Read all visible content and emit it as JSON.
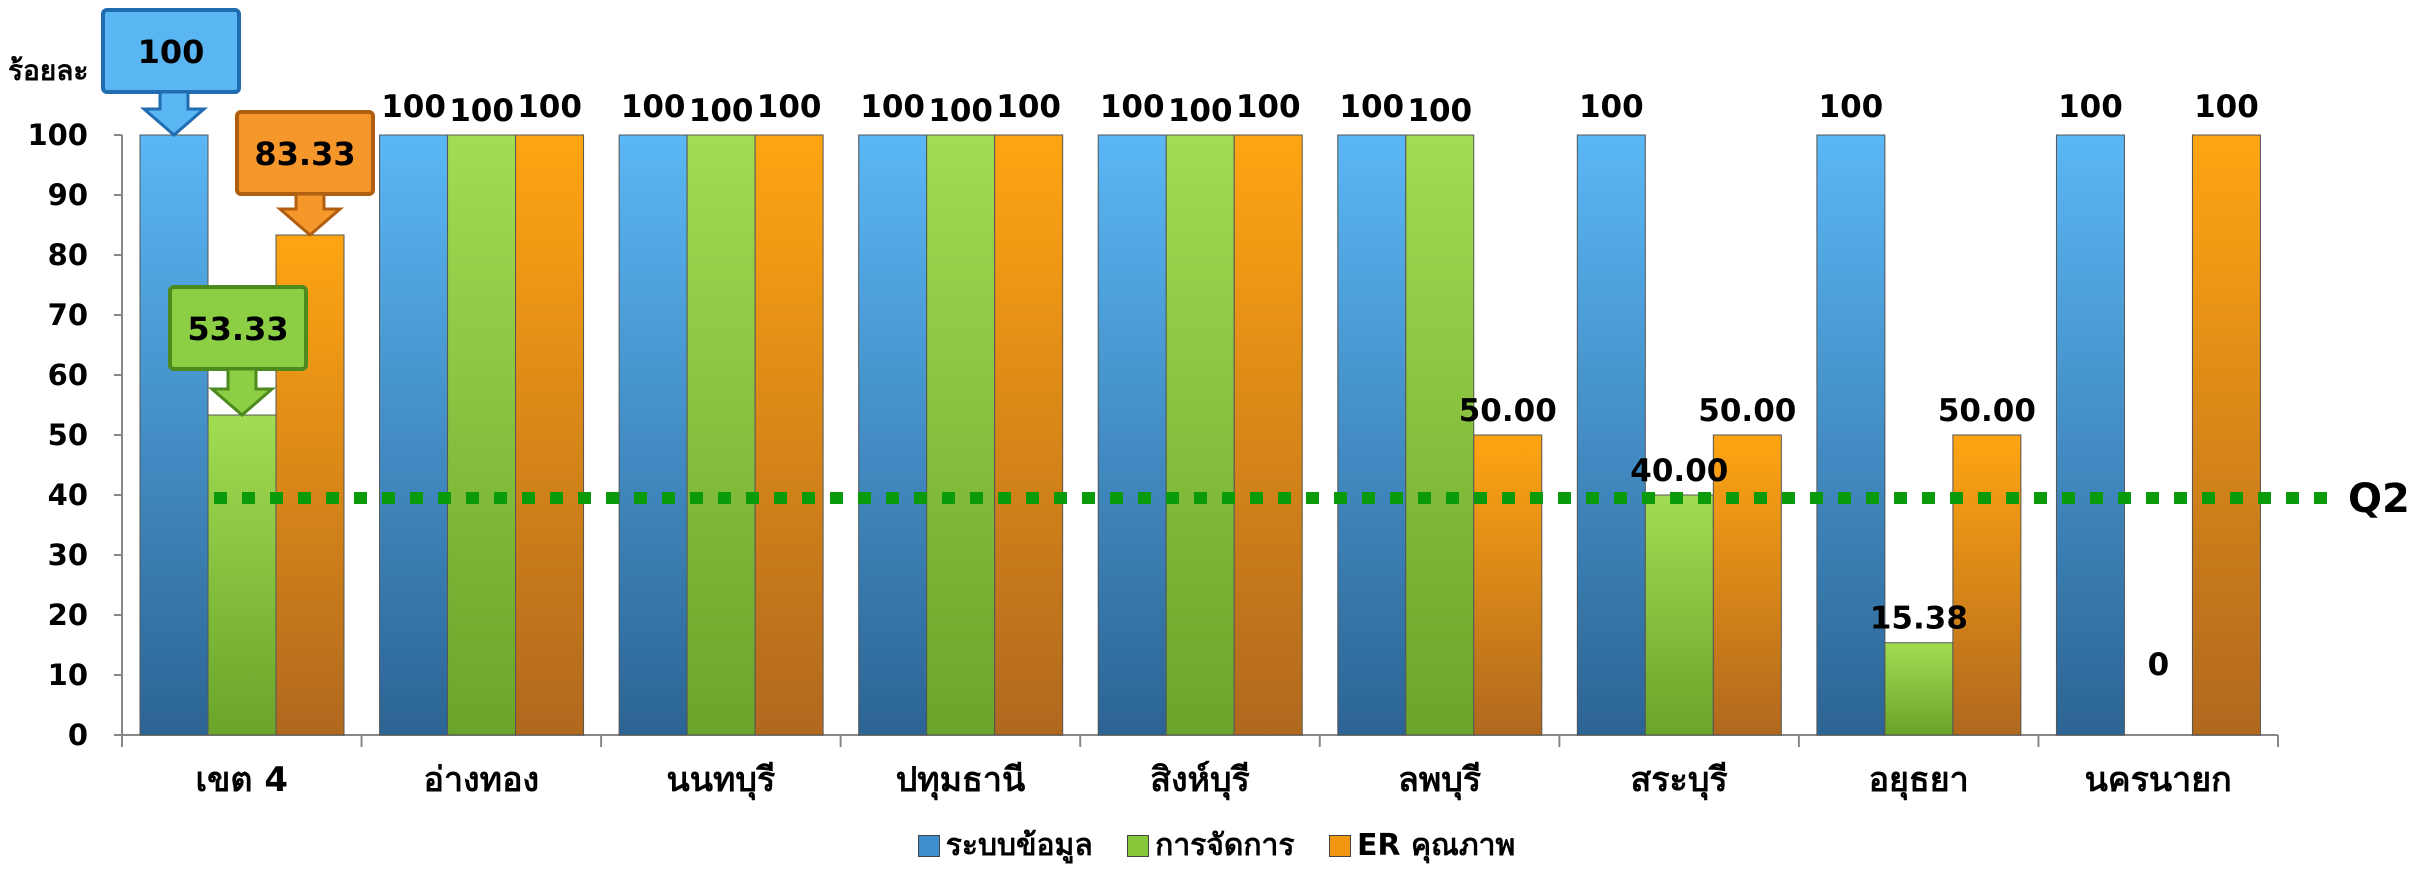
{
  "chart_data": {
    "type": "bar",
    "ylabel": "ร้อยละ",
    "ylim": [
      0,
      100
    ],
    "yticks": [
      0,
      10,
      20,
      30,
      40,
      50,
      60,
      70,
      80,
      90,
      100
    ],
    "categories": [
      "เขต 4",
      "อ่างทอง",
      "นนทบุรี",
      "ปทุมธานี",
      "สิงห์บุรี",
      "ลพบุรี",
      "สระบุรี",
      "อยุธยา",
      "นครนายก"
    ],
    "series": [
      {
        "name": "ระบบข้อมูล",
        "color": "#3f8fd0",
        "values": [
          100,
          100,
          100,
          100,
          100,
          100,
          100,
          100,
          100
        ],
        "labels": [
          "100",
          "100",
          "100",
          "100",
          "100",
          "100",
          "100",
          "100",
          "100"
        ]
      },
      {
        "name": "การจัดการ",
        "color": "#86c83a",
        "values": [
          53.33,
          100,
          100,
          100,
          100,
          100,
          40,
          15.38,
          0
        ],
        "labels": [
          "53.33",
          "100",
          "100",
          "100",
          "100",
          "100",
          "40.00",
          "15.38",
          "0"
        ]
      },
      {
        "name": "ER คุณภาพ",
        "color": "#f0960f",
        "values": [
          83.33,
          100,
          100,
          100,
          100,
          50,
          50,
          50,
          100
        ],
        "labels": [
          "83.33",
          "100",
          "100",
          "100",
          "100",
          "50.00",
          "50.00",
          "50.00",
          "100"
        ]
      }
    ],
    "reference_line": {
      "value": 39.5,
      "label": "Q2",
      "color": "#0a9a0a",
      "style": "dotted"
    },
    "grid": false,
    "legend_position": "bottom"
  }
}
